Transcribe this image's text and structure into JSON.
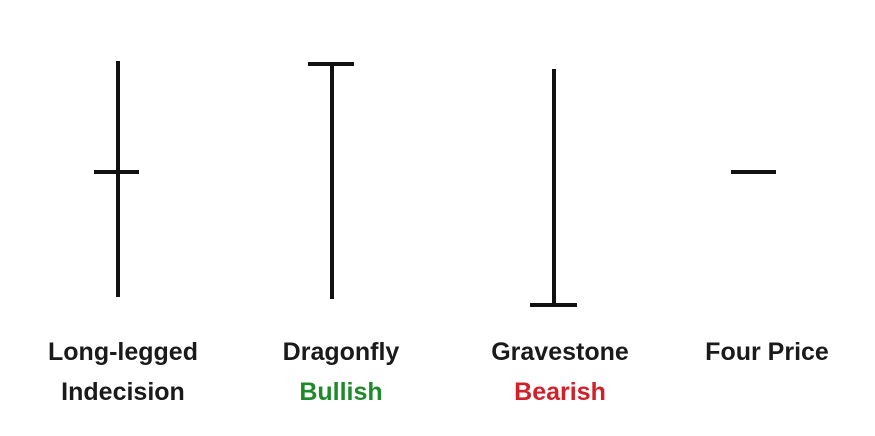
{
  "doji": [
    {
      "name": "Long-legged",
      "subtitle": "Indecision",
      "subtitle_color": "#1a1a1a",
      "type": "long-legged"
    },
    {
      "name": "Dragonfly",
      "subtitle": "Bullish",
      "subtitle_color": "#1f8a2a",
      "type": "dragonfly"
    },
    {
      "name": "Gravestone",
      "subtitle": "Bearish",
      "subtitle_color": "#d0202a",
      "type": "gravestone"
    },
    {
      "name": "Four Price",
      "subtitle": "",
      "subtitle_color": "#1a1a1a",
      "type": "four-price"
    }
  ],
  "colors": {
    "stroke": "#111111",
    "background": "#ffffff"
  }
}
